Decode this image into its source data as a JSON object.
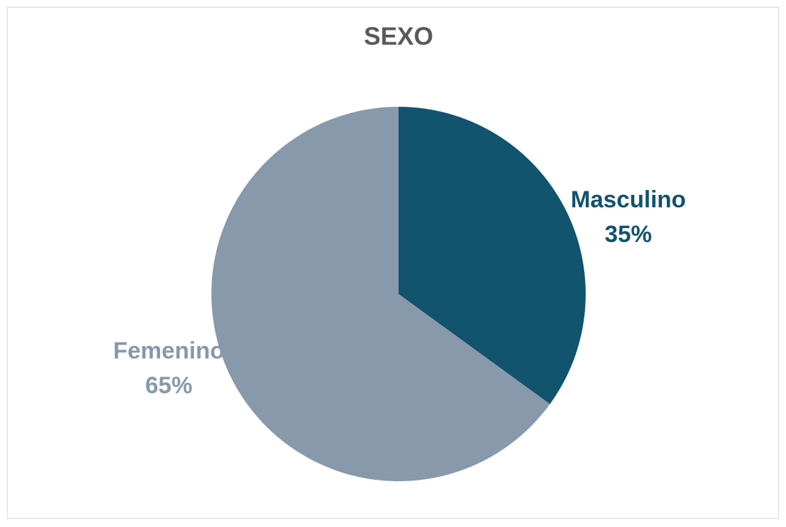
{
  "chart_data": {
    "type": "pie",
    "title": "SEXO",
    "categories": [
      "Masculino",
      "Femenino"
    ],
    "values": [
      35,
      65
    ],
    "value_labels": [
      "35%",
      "65%"
    ],
    "colors": [
      "#12536e",
      "#8799ab"
    ]
  }
}
